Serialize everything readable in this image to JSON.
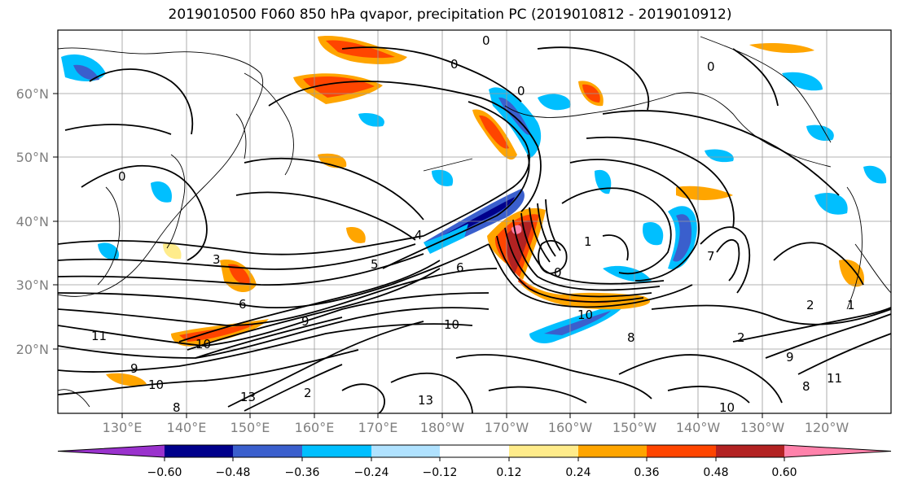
{
  "title": "2019010500 F060 850 hPa qvapor, precipitation PC (2019010812 - 2019010912)",
  "lat_labels": [
    "60°N",
    "50°N",
    "40°N",
    "30°N",
    "20°N"
  ],
  "lon_labels": [
    "130°E",
    "140°E",
    "150°E",
    "160°E",
    "170°E",
    "180°W",
    "170°W",
    "160°W",
    "150°W",
    "140°W",
    "130°W",
    "120°W"
  ],
  "colorbar": {
    "colors": [
      "#9a32cd",
      "#00008b",
      "#3a5fcd",
      "#00bfff",
      "#b0e2ff",
      "#ffffff",
      "#ffec8b",
      "#ffa500",
      "#ff4500",
      "#b22222",
      "#ff82ab"
    ],
    "tick_labels": [
      "−0.60",
      "−0.48",
      "−0.36",
      "−0.24",
      "−0.12",
      "0.12",
      "0.24",
      "0.36",
      "0.48",
      "0.60"
    ]
  },
  "contour_labels": [
    "0",
    "0",
    "0",
    "0",
    "0",
    "0",
    "1",
    "1",
    "2",
    "2",
    "2",
    "3",
    "4",
    "5",
    "6",
    "6",
    "7",
    "8",
    "8",
    "8",
    "9",
    "9",
    "9",
    "10",
    "10",
    "10",
    "10",
    "10",
    "11",
    "11",
    "13",
    "13"
  ]
}
